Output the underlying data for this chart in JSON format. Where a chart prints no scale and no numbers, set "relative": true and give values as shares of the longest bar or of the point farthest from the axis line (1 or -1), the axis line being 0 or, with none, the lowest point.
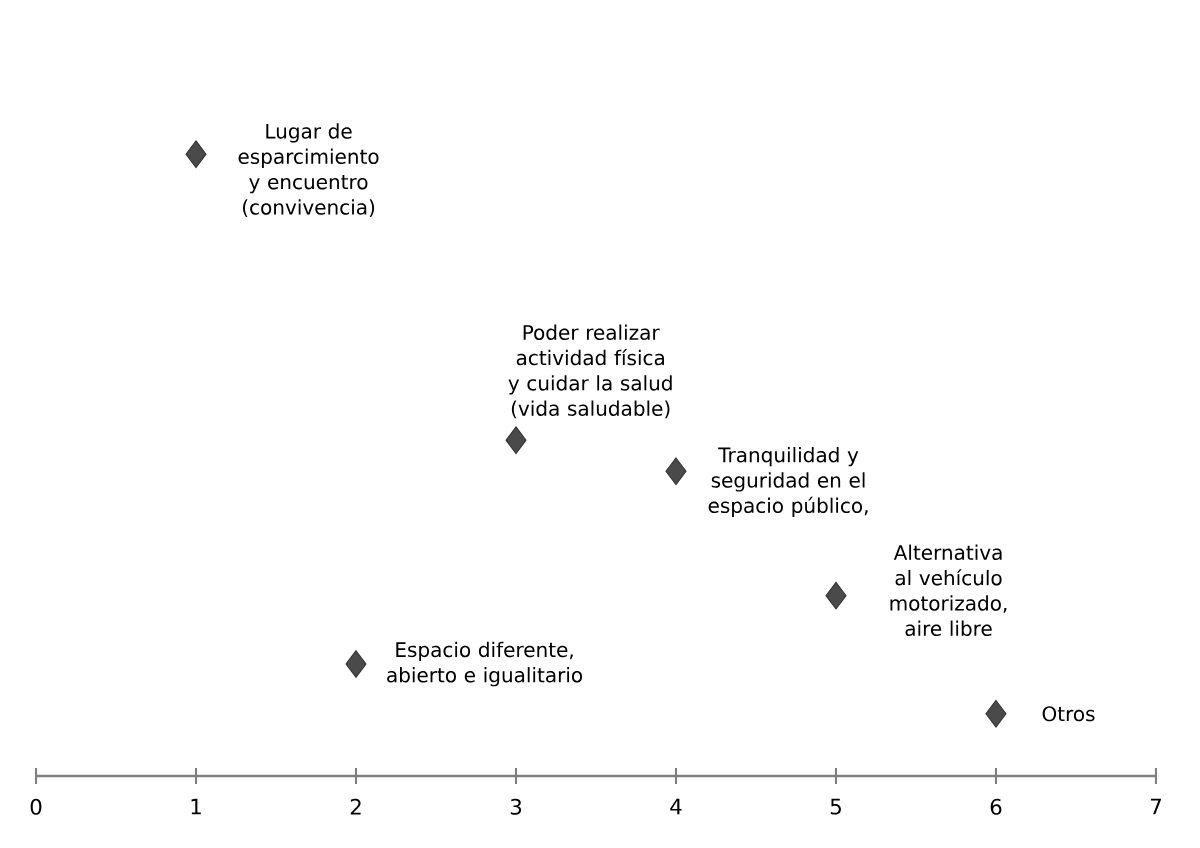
{
  "chart_data": {
    "type": "scatter",
    "relative": true,
    "marker": "diamond",
    "color": "#4a4a4a",
    "x": [
      1,
      2,
      3,
      4,
      5,
      6
    ],
    "values": [
      1,
      0.18,
      0.54,
      0.49,
      0.29,
      0.1
    ],
    "xlim": [
      0,
      7
    ],
    "xticks": [
      0,
      1,
      2,
      3,
      4,
      5,
      6,
      7
    ],
    "annotations": [
      {
        "text": "Lugar de esparcimiento y encuentro (convivencia)",
        "x": 1,
        "y": 1
      },
      {
        "text": "Espacio diferente, abierto e igualitario",
        "x": 2,
        "y": 0.18
      },
      {
        "text": "Poder realizar actividad física y cuidar la salud (vida saludable)",
        "x": 3,
        "y": 0.54
      },
      {
        "text": "Tranquilidad y seguridad en el espacio público,",
        "x": 4,
        "y": 0.49
      },
      {
        "text": "Alternativa al vehículo motorizado, aire libre",
        "x": 5,
        "y": 0.29
      },
      {
        "text": "Otros",
        "x": 6,
        "y": 0.1
      }
    ]
  }
}
